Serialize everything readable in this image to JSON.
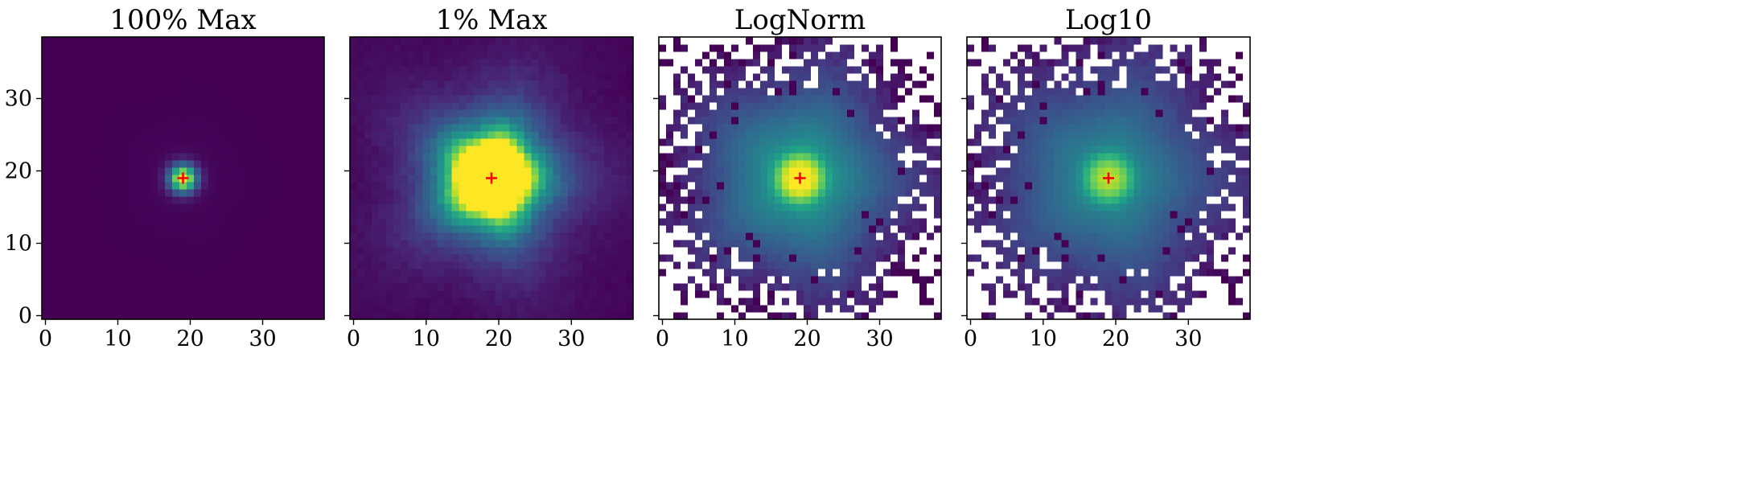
{
  "chart_data": [
    {
      "type": "heatmap",
      "title": "100% Max",
      "norm": "linear",
      "vmax_fraction": 1.0,
      "colormap": "viridis",
      "grid_size": [
        39,
        39
      ],
      "xlim": [
        -0.5,
        38.5
      ],
      "ylim": [
        -0.5,
        38.5
      ],
      "xticks": [
        0,
        10,
        20,
        30
      ],
      "yticks": [
        0,
        10,
        20,
        30
      ],
      "xtick_labels": [
        "0",
        "10",
        "20",
        "30"
      ],
      "ytick_labels": [
        "0",
        "10",
        "20",
        "30"
      ],
      "show_ytick_labels": true,
      "marker": {
        "x": 19,
        "y": 19,
        "symbol": "+",
        "color": "#ff0000"
      },
      "color_accent": "#fde725",
      "color_background": "#440154"
    },
    {
      "type": "heatmap",
      "title": "1% Max",
      "norm": "linear",
      "vmax_fraction": 0.01,
      "colormap": "viridis",
      "grid_size": [
        39,
        39
      ],
      "xlim": [
        -0.5,
        38.5
      ],
      "ylim": [
        -0.5,
        38.5
      ],
      "xticks": [
        0,
        10,
        20,
        30
      ],
      "yticks": [
        0,
        10,
        20,
        30
      ],
      "xtick_labels": [
        "0",
        "10",
        "20",
        "30"
      ],
      "ytick_labels": [
        "",
        "",
        "",
        ""
      ],
      "show_ytick_labels": false,
      "marker": {
        "x": 19,
        "y": 19,
        "symbol": "+",
        "color": "#ff0000"
      },
      "color_accent": "#fde725",
      "color_background": "#440154"
    },
    {
      "type": "heatmap",
      "title": "LogNorm",
      "norm": "log",
      "colormap": "viridis",
      "grid_size": [
        39,
        39
      ],
      "xlim": [
        -0.5,
        38.5
      ],
      "ylim": [
        -0.5,
        38.5
      ],
      "xticks": [
        0,
        10,
        20,
        30
      ],
      "yticks": [
        0,
        10,
        20,
        30
      ],
      "xtick_labels": [
        "0",
        "10",
        "20",
        "30"
      ],
      "ytick_labels": [
        "",
        "",
        "",
        ""
      ],
      "show_ytick_labels": false,
      "masked_color": "#ffffff",
      "marker": {
        "x": 19,
        "y": 19,
        "symbol": "+",
        "color": "#ff0000"
      }
    },
    {
      "type": "heatmap",
      "title": "Log10",
      "norm": "log10",
      "colormap": "viridis",
      "grid_size": [
        39,
        39
      ],
      "xlim": [
        -0.5,
        38.5
      ],
      "ylim": [
        -0.5,
        38.5
      ],
      "xticks": [
        0,
        10,
        20,
        30
      ],
      "yticks": [
        0,
        10,
        20,
        30
      ],
      "xtick_labels": [
        "0",
        "10",
        "20",
        "30"
      ],
      "ytick_labels": [
        "",
        "",
        "",
        ""
      ],
      "show_ytick_labels": false,
      "masked_color": "#ffffff",
      "marker": {
        "x": 19,
        "y": 19,
        "symbol": "+",
        "color": "#ff0000"
      }
    }
  ]
}
